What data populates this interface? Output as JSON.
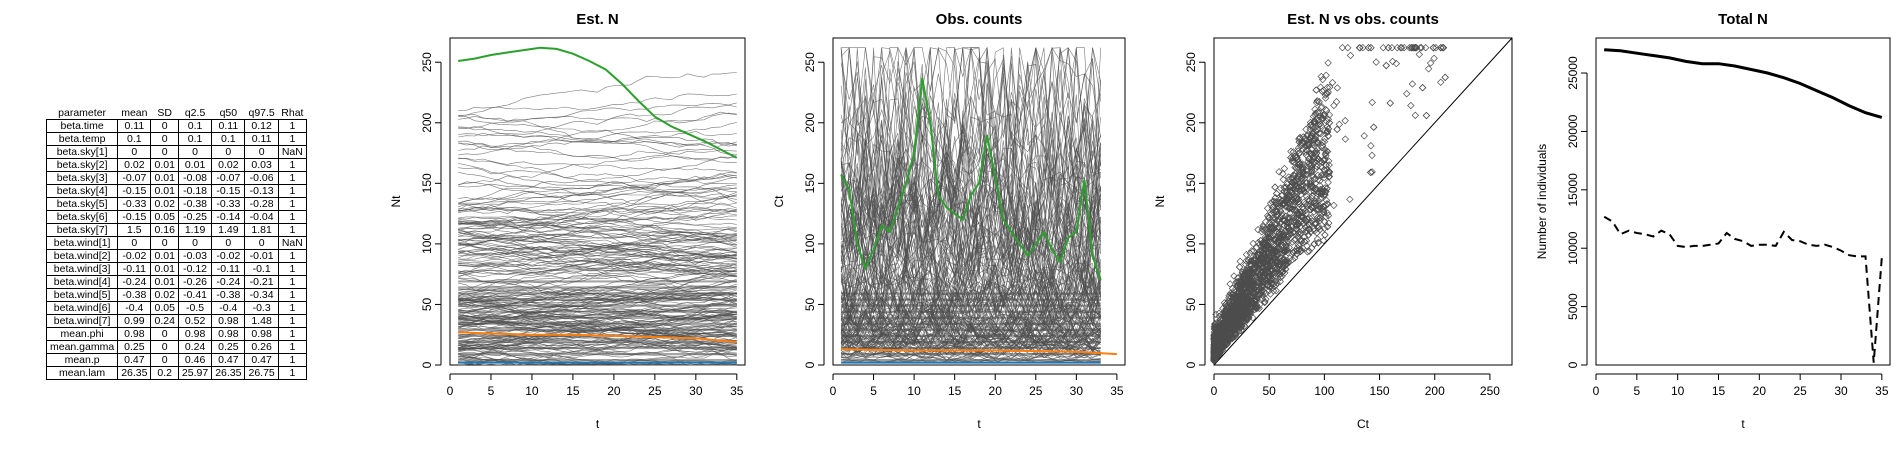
{
  "table": {
    "columns": [
      "parameter",
      "mean",
      "SD",
      "q2.5",
      "q50",
      "q97.5",
      "Rhat"
    ],
    "rows": [
      [
        "beta.time",
        "0.11",
        "0",
        "0.1",
        "0.11",
        "0.12",
        "1"
      ],
      [
        "beta.temp",
        "0.1",
        "0",
        "0.1",
        "0.1",
        "0.11",
        "1"
      ],
      [
        "beta.sky[1]",
        "0",
        "0",
        "0",
        "0",
        "0",
        "NaN"
      ],
      [
        "beta.sky[2]",
        "0.02",
        "0.01",
        "0.01",
        "0.02",
        "0.03",
        "1"
      ],
      [
        "beta.sky[3]",
        "-0.07",
        "0.01",
        "-0.08",
        "-0.07",
        "-0.06",
        "1"
      ],
      [
        "beta.sky[4]",
        "-0.15",
        "0.01",
        "-0.18",
        "-0.15",
        "-0.13",
        "1"
      ],
      [
        "beta.sky[5]",
        "-0.33",
        "0.02",
        "-0.38",
        "-0.33",
        "-0.28",
        "1"
      ],
      [
        "beta.sky[6]",
        "-0.15",
        "0.05",
        "-0.25",
        "-0.14",
        "-0.04",
        "1"
      ],
      [
        "beta.sky[7]",
        "1.5",
        "0.16",
        "1.19",
        "1.49",
        "1.81",
        "1"
      ],
      [
        "beta.wind[1]",
        "0",
        "0",
        "0",
        "0",
        "0",
        "NaN"
      ],
      [
        "beta.wind[2]",
        "-0.02",
        "0.01",
        "-0.03",
        "-0.02",
        "-0.01",
        "1"
      ],
      [
        "beta.wind[3]",
        "-0.11",
        "0.01",
        "-0.12",
        "-0.11",
        "-0.1",
        "1"
      ],
      [
        "beta.wind[4]",
        "-0.24",
        "0.01",
        "-0.26",
        "-0.24",
        "-0.21",
        "1"
      ],
      [
        "beta.wind[5]",
        "-0.38",
        "0.02",
        "-0.41",
        "-0.38",
        "-0.34",
        "1"
      ],
      [
        "beta.wind[6]",
        "-0.4",
        "0.05",
        "-0.5",
        "-0.4",
        "-0.3",
        "1"
      ],
      [
        "beta.wind[7]",
        "0.99",
        "0.24",
        "0.52",
        "0.98",
        "1.48",
        "1"
      ],
      [
        "mean.phi",
        "0.98",
        "0",
        "0.98",
        "0.98",
        "0.98",
        "1"
      ],
      [
        "mean.gamma",
        "0.25",
        "0",
        "0.24",
        "0.25",
        "0.26",
        "1"
      ],
      [
        "mean.p",
        "0.47",
        "0",
        "0.46",
        "0.47",
        "0.47",
        "1"
      ],
      [
        "mean.lam",
        "26.35",
        "0.2",
        "25.97",
        "26.35",
        "26.75",
        "1"
      ]
    ]
  },
  "colors": {
    "background_lines": "#4d4d4d",
    "highlight_green": "#2ca02c",
    "highlight_orange": "#ff7f0e",
    "highlight_blue": "#1f77b4",
    "scatter_points": "#4d4d4d"
  },
  "chart_data": [
    {
      "type": "line",
      "title": "Est. N",
      "xlabel": "t",
      "ylabel": "Nt",
      "xlim": [
        0,
        36
      ],
      "ylim": [
        0,
        270
      ],
      "xticks": [
        0,
        5,
        10,
        15,
        20,
        25,
        30,
        35
      ],
      "yticks": [
        0,
        50,
        100,
        150,
        200,
        250
      ],
      "grid": false,
      "note_many_gray_series": true,
      "highlight_series": [
        {
          "color": "green",
          "x": [
            1,
            3,
            5,
            7,
            9,
            11,
            13,
            15,
            17,
            19,
            21,
            23,
            25,
            27,
            29,
            31,
            33,
            35
          ],
          "values": [
            251,
            253,
            256,
            258,
            260,
            262,
            261,
            257,
            251,
            244,
            232,
            218,
            205,
            197,
            191,
            185,
            178,
            171
          ]
        },
        {
          "color": "orange",
          "x": [
            1,
            5,
            10,
            15,
            20,
            25,
            30,
            35
          ],
          "values": [
            27,
            26,
            25,
            25,
            24,
            23,
            22,
            19
          ]
        },
        {
          "color": "blue",
          "x": [
            1,
            35
          ],
          "values": [
            2,
            2
          ]
        }
      ]
    },
    {
      "type": "line",
      "title": "Obs. counts",
      "xlabel": "t",
      "ylabel": "Ct",
      "xlim": [
        0,
        36
      ],
      "ylim": [
        0,
        270
      ],
      "xticks": [
        0,
        5,
        10,
        15,
        20,
        25,
        30,
        35
      ],
      "yticks": [
        0,
        50,
        100,
        150,
        200,
        250
      ],
      "grid": false,
      "note_many_gray_series": true,
      "highlight_series": [
        {
          "color": "green",
          "x": [
            1,
            2,
            3,
            4,
            5,
            6,
            7,
            8,
            9,
            10,
            11,
            12,
            13,
            14,
            15,
            16,
            17,
            18,
            19,
            20,
            21,
            22,
            23,
            24,
            25,
            26,
            27,
            28,
            29,
            30,
            31,
            32,
            33
          ],
          "values": [
            157,
            145,
            100,
            80,
            95,
            115,
            110,
            130,
            150,
            175,
            237,
            200,
            140,
            130,
            125,
            120,
            140,
            150,
            190,
            155,
            120,
            110,
            100,
            90,
            100,
            110,
            95,
            85,
            105,
            110,
            153,
            90,
            70
          ]
        },
        {
          "color": "orange",
          "x": [
            1,
            10,
            20,
            30,
            35
          ],
          "values": [
            13,
            12,
            12,
            11,
            9
          ]
        },
        {
          "color": "blue",
          "x": [
            1,
            33
          ],
          "values": [
            2,
            2
          ]
        }
      ]
    },
    {
      "type": "scatter",
      "title": "Est. N vs obs. counts",
      "xlabel": "Ct",
      "ylabel": "Nt",
      "xlim": [
        0,
        270
      ],
      "ylim": [
        0,
        270
      ],
      "xticks": [
        0,
        50,
        100,
        150,
        200,
        250
      ],
      "yticks": [
        0,
        50,
        100,
        150,
        200,
        250
      ],
      "identity_line": true,
      "point_shape": "diamond",
      "grid": false
    },
    {
      "type": "line",
      "title": "Total N",
      "xlabel": "t",
      "ylabel": "Number of individuals",
      "xlim": [
        0,
        36
      ],
      "ylim": [
        0,
        28000
      ],
      "xticks": [
        0,
        5,
        10,
        15,
        20,
        25,
        30,
        35
      ],
      "yticks": [
        0,
        5000,
        10000,
        15000,
        20000,
        25000
      ],
      "grid": false,
      "series": [
        {
          "style": "solid",
          "x": [
            1,
            3,
            5,
            7,
            9,
            11,
            13,
            15,
            17,
            19,
            21,
            23,
            25,
            27,
            29,
            31,
            33,
            35
          ],
          "values": [
            27000,
            26900,
            26700,
            26500,
            26300,
            26000,
            25800,
            25800,
            25600,
            25300,
            25000,
            24600,
            24100,
            23500,
            22900,
            22200,
            21600,
            21200
          ]
        },
        {
          "style": "dashed",
          "x": [
            1,
            2,
            3,
            4,
            5,
            6,
            7,
            8,
            9,
            10,
            11,
            12,
            13,
            14,
            15,
            16,
            17,
            18,
            19,
            20,
            21,
            22,
            23,
            24,
            25,
            26,
            27,
            28,
            29,
            30,
            31,
            32,
            33,
            34,
            35
          ],
          "values": [
            12700,
            12300,
            11200,
            11500,
            11300,
            11200,
            11000,
            11500,
            11200,
            10200,
            10100,
            10200,
            10200,
            10300,
            10400,
            11300,
            10800,
            10600,
            10200,
            10300,
            10300,
            10200,
            11400,
            10700,
            10600,
            10300,
            10200,
            10300,
            10100,
            9800,
            9400,
            9300,
            9300,
            200,
            9200
          ]
        }
      ]
    }
  ]
}
